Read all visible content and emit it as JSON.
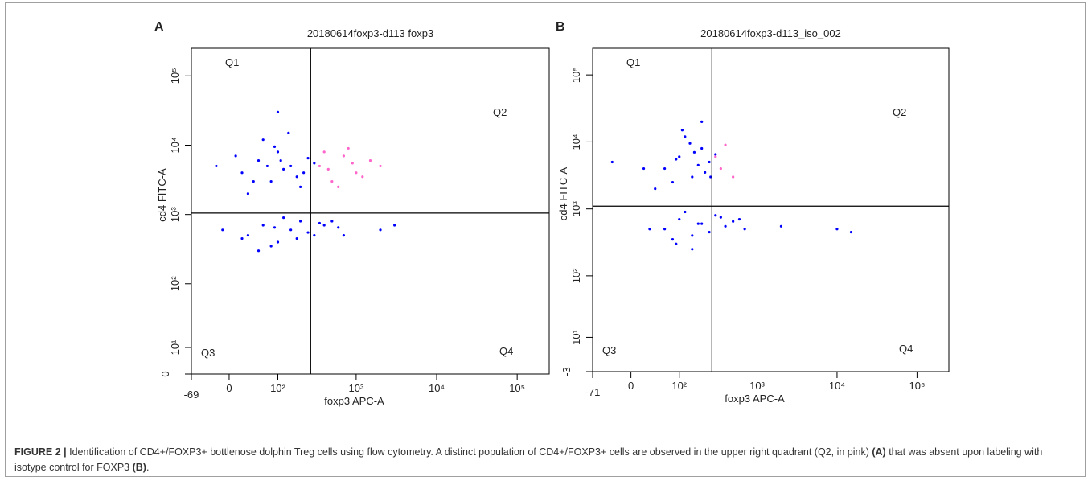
{
  "chart_data": [
    {
      "type": "scatter",
      "panel": "A",
      "title": "20180614foxp3-d113 foxp3",
      "xlabel": "foxp3 APC-A",
      "ylabel": "cd4 FITC-A",
      "xscale": "biexponential",
      "yscale": "biexponential",
      "xlim": [
        -69,
        250000
      ],
      "ylim": [
        0,
        250000
      ],
      "xticks": [
        -69,
        0,
        {
          "value": 100,
          "label": "10²"
        },
        {
          "value": 1000,
          "label": "10³"
        },
        {
          "value": 10000,
          "label": "10⁴"
        },
        {
          "value": 100000,
          "label": "10⁵"
        }
      ],
      "yticks": [
        0,
        {
          "value": 10,
          "label": "10¹"
        },
        {
          "value": 100,
          "label": "10²"
        },
        {
          "value": 1000,
          "label": "10³"
        },
        {
          "value": 10000,
          "label": "10⁴"
        },
        {
          "value": 100000,
          "label": "10⁵"
        }
      ],
      "gate": {
        "x": 270,
        "y": 1050
      },
      "quadrant_labels": [
        "Q1",
        "Q2",
        "Q3",
        "Q4"
      ],
      "series": [
        {
          "color": "#0000ff",
          "x": [
            20,
            50,
            80,
            100,
            150,
            200,
            60,
            120,
            250,
            30,
            90,
            180,
            300,
            10,
            70,
            140,
            40,
            110,
            220,
            -20,
            100,
            30,
            60,
            100,
            150,
            200,
            80,
            250,
            400,
            600,
            20,
            120,
            300,
            -10,
            50,
            180,
            500,
            700,
            90,
            350,
            2000,
            3000
          ],
          "y": [
            4000,
            6000,
            3000,
            8000,
            5000,
            2500,
            12000,
            4500,
            6500,
            2000,
            9500,
            3500,
            5500,
            7000,
            5000,
            15000,
            3000,
            6000,
            4000,
            5000,
            30000,
            500,
            700,
            400,
            600,
            800,
            350,
            550,
            700,
            650,
            450,
            900,
            500,
            600,
            300,
            450,
            800,
            500,
            650,
            750,
            600,
            700
          ]
        },
        {
          "color": "#ff66cc",
          "x": [
            350,
            500,
            700,
            1000,
            1500,
            400,
            600,
            900,
            1200,
            800,
            450,
            2000
          ],
          "y": [
            5000,
            3000,
            7000,
            4000,
            6000,
            8000,
            2500,
            5500,
            3500,
            9000,
            4500,
            5000
          ]
        }
      ]
    },
    {
      "type": "scatter",
      "panel": "B",
      "title": "20180614foxp3-d113_iso_002",
      "xlabel": "foxp3 APC-A",
      "ylabel": "cd4 FITC-A",
      "xscale": "biexponential",
      "yscale": "biexponential",
      "xlim": [
        -71,
        250000
      ],
      "ylim": [
        -3,
        250000
      ],
      "xticks": [
        -71,
        0,
        {
          "value": 100,
          "label": "10²"
        },
        {
          "value": 1000,
          "label": "10³"
        },
        {
          "value": 10000,
          "label": "10⁴"
        },
        {
          "value": 100000,
          "label": "10⁵"
        }
      ],
      "yticks": [
        -3,
        {
          "value": 10,
          "label": "10¹"
        },
        {
          "value": 100,
          "label": "10²"
        },
        {
          "value": 1000,
          "label": "10³"
        },
        {
          "value": 10000,
          "label": "10⁴"
        },
        {
          "value": 100000,
          "label": "10⁵"
        }
      ],
      "gate": {
        "x": 270,
        "y": 1100
      },
      "quadrant_labels": [
        "Q1",
        "Q2",
        "Q3",
        "Q4"
      ],
      "series": [
        {
          "color": "#0000ff",
          "x": [
            60,
            100,
            150,
            200,
            250,
            80,
            120,
            180,
            300,
            40,
            140,
            220,
            90,
            160,
            260,
            20,
            110,
            200,
            -30,
            150,
            60,
            100,
            150,
            200,
            300,
            80,
            400,
            600,
            120,
            250,
            30,
            180,
            500,
            700,
            90,
            350,
            2000,
            10000,
            15000
          ],
          "y": [
            4000,
            6000,
            3000,
            8000,
            5000,
            2500,
            12000,
            4500,
            6500,
            2000,
            9500,
            3500,
            5500,
            7000,
            3000,
            4000,
            15000,
            20000,
            5000,
            250,
            500,
            700,
            400,
            600,
            800,
            350,
            550,
            700,
            900,
            450,
            500,
            600,
            650,
            500,
            300,
            750,
            550,
            500,
            450
          ]
        },
        {
          "color": "#ff66cc",
          "x": [
            300,
            400,
            350,
            500
          ],
          "y": [
            6000,
            9000,
            4000,
            3000
          ]
        }
      ]
    }
  ],
  "caption": {
    "label": "FIGURE 2 |",
    "text": "Identification of CD4+/FOXP3+ bottlenose dolphin Treg cells using flow cytometry. A distinct population of CD4+/FOXP3+ cells are observed in the upper right quadrant (Q2, in pink)",
    "ref_a": "(A)",
    "text2": "that was absent upon labeling with isotype control for FOXP3",
    "ref_b": "(B)",
    "end": "."
  }
}
